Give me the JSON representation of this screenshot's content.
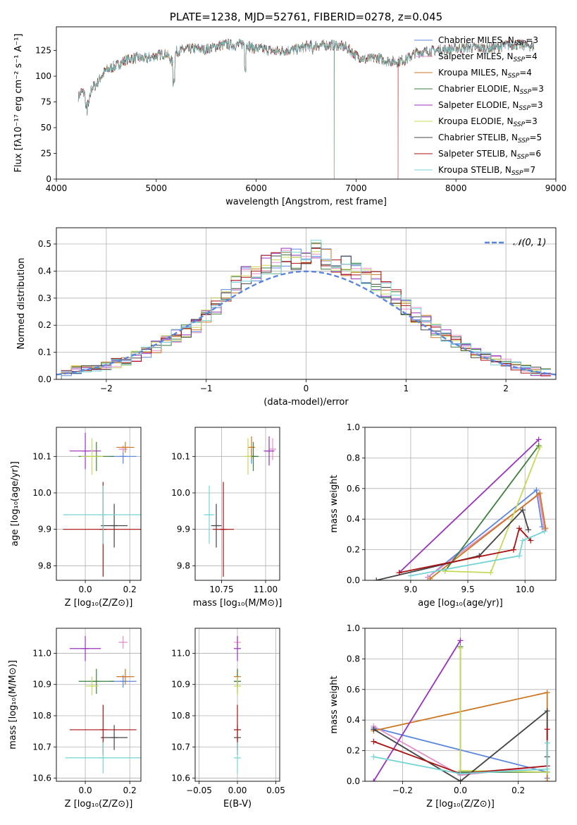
{
  "chart_data": [
    {
      "id": "spectrum",
      "type": "line",
      "title": "PLATE=1238, MJD=52761, FIBERID=0278, z=0.045",
      "xlabel": "wavelength [Angstrom, rest frame]",
      "ylabel": "Flux [fλ10⁻¹⁷ erg cm⁻² s⁻¹ A⁻¹]",
      "xlim": [
        4000,
        9000
      ],
      "ylim": [
        0,
        148
      ],
      "xticks": [
        "4000",
        "5000",
        "6000",
        "7000",
        "8000",
        "9000"
      ],
      "yticks": [
        "0",
        "25",
        "50",
        "75",
        "100",
        "125"
      ],
      "grid": false,
      "legend_position": "top-right",
      "continuum": {
        "x": [
          4220,
          4250,
          4300,
          4320,
          4350,
          4400,
          4450,
          4500,
          4600,
          4700,
          4800,
          4900,
          5000,
          5100,
          5170,
          5200,
          5300,
          5400,
          5500,
          5600,
          5700,
          5800,
          5880,
          5950,
          6000,
          6100,
          6200,
          6300,
          6400,
          6500,
          6600,
          6700,
          6800,
          6900,
          7000,
          7100,
          7200,
          7300,
          7400,
          7500,
          7600,
          7700,
          7800,
          7900,
          8000,
          8100,
          8200,
          8300,
          8400,
          8500,
          8600,
          8700,
          8780
        ],
        "y": [
          80,
          85,
          82,
          70,
          88,
          92,
          100,
          106,
          110,
          116,
          118,
          117,
          120,
          122,
          112,
          124,
          126,
          127,
          126,
          129,
          131,
          130,
          132,
          128,
          127,
          126,
          124,
          125,
          126,
          129,
          130,
          130,
          130,
          128,
          120,
          116,
          118,
          115,
          114,
          116,
          123,
          124,
          125,
          126,
          127,
          128,
          128,
          127,
          128,
          130,
          131,
          130,
          129
        ]
      },
      "dips": [
        {
          "x": 6780,
          "y": 0,
          "series": "Chabrier ELODIE"
        },
        {
          "x": 7420,
          "y": 0,
          "series": "Salpeter STELIB"
        }
      ],
      "series": [
        {
          "name": "Chabrier MILES, N",
          "sub": "SSP",
          "suffix": "=3",
          "color": "#5b86dd"
        },
        {
          "name": "Salpeter MILES, N",
          "sub": "SSP",
          "suffix": "=4",
          "color": "#e48fc5"
        },
        {
          "name": "Kroupa MILES, N",
          "sub": "SSP",
          "suffix": "=4",
          "color": "#cc7722"
        },
        {
          "name": "Chabrier ELODIE, N",
          "sub": "SSP",
          "suffix": "=3",
          "color": "#3f7d3f"
        },
        {
          "name": "Salpeter ELODIE, N",
          "sub": "SSP",
          "suffix": "=3",
          "color": "#9933bb"
        },
        {
          "name": "Kroupa ELODIE, N",
          "sub": "SSP",
          "suffix": "=3",
          "color": "#c8d85a"
        },
        {
          "name": "Chabrier STELIB, N",
          "sub": "SSP",
          "suffix": "=5",
          "color": "#444444"
        },
        {
          "name": "Salpeter STELIB, N",
          "sub": "SSP",
          "suffix": "=6",
          "color": "#aa1111"
        },
        {
          "name": "Kroupa STELIB, N",
          "sub": "SSP",
          "suffix": "=7",
          "color": "#77d4d4"
        }
      ]
    },
    {
      "id": "residuals",
      "type": "histogram",
      "xlabel": "(data-model)/error",
      "ylabel": "Normed distribution",
      "xlim": [
        -2.5,
        2.5
      ],
      "ylim": [
        0,
        0.56
      ],
      "xticks": [
        "−2",
        "−1",
        "0",
        "1",
        "2"
      ],
      "yticks": [
        "0.0",
        "0.1",
        "0.2",
        "0.3",
        "0.4",
        "0.5"
      ],
      "grid": true,
      "legend": [
        {
          "name": "𝒩(0, 1)",
          "style": "dashed",
          "color": "#5b86dd"
        }
      ],
      "legend_position": "top-right",
      "bin_centers": [
        -2.4,
        -2.3,
        -2.2,
        -2.1,
        -2.0,
        -1.9,
        -1.8,
        -1.7,
        -1.6,
        -1.5,
        -1.4,
        -1.3,
        -1.2,
        -1.1,
        -1.0,
        -0.9,
        -0.8,
        -0.7,
        -0.6,
        -0.5,
        -0.4,
        -0.3,
        -0.2,
        -0.1,
        0.0,
        0.1,
        0.2,
        0.3,
        0.4,
        0.5,
        0.6,
        0.7,
        0.8,
        0.9,
        1.0,
        1.1,
        1.2,
        1.3,
        1.4,
        1.5,
        1.6,
        1.7,
        1.8,
        1.9,
        2.0,
        2.1,
        2.2,
        2.3,
        2.4
      ],
      "envelope": [
        0.03,
        0.035,
        0.04,
        0.045,
        0.05,
        0.06,
        0.07,
        0.085,
        0.1,
        0.12,
        0.14,
        0.16,
        0.18,
        0.2,
        0.23,
        0.27,
        0.31,
        0.35,
        0.38,
        0.4,
        0.42,
        0.43,
        0.44,
        0.45,
        0.47,
        0.47,
        0.45,
        0.44,
        0.42,
        0.4,
        0.38,
        0.36,
        0.33,
        0.3,
        0.27,
        0.24,
        0.21,
        0.18,
        0.16,
        0.14,
        0.12,
        0.1,
        0.085,
        0.07,
        0.06,
        0.05,
        0.04,
        0.03,
        0.025
      ]
    },
    {
      "id": "age-vs-z",
      "type": "errorbar",
      "xlabel": "Z [log₁₀(Z/Z⊙)]",
      "ylabel": "age  [log₁₀(age/yr)]",
      "xlim": [
        -0.13,
        0.25
      ],
      "ylim": [
        9.76,
        10.18
      ],
      "xticks": [
        {
          "v": 0.0,
          "t": "0.0"
        },
        {
          "v": 0.2,
          "t": "0.2"
        }
      ],
      "yticks": [
        {
          "v": 9.8,
          "t": "9.8"
        },
        {
          "v": 9.9,
          "t": "9.9"
        },
        {
          "v": 10.0,
          "t": "10.0"
        },
        {
          "v": 10.1,
          "t": "10.1"
        }
      ],
      "grid": true,
      "points": [
        {
          "series": 0,
          "x": 0.17,
          "y": 10.1,
          "xerr": 0.06,
          "yerr": 0.02
        },
        {
          "series": 1,
          "x": 0.17,
          "y": 10.12,
          "xerr": 0.02,
          "yerr": 0.01
        },
        {
          "series": 2,
          "x": 0.18,
          "y": 10.125,
          "xerr": 0.04,
          "yerr": 0.015
        },
        {
          "series": 3,
          "x": 0.05,
          "y": 10.1,
          "xerr": 0.08,
          "yerr": 0.04
        },
        {
          "series": 4,
          "x": 0.0,
          "y": 10.115,
          "xerr": 0.07,
          "yerr": 0.05
        },
        {
          "series": 5,
          "x": 0.03,
          "y": 10.1,
          "xerr": 0.05,
          "yerr": 0.05
        },
        {
          "series": 6,
          "x": 0.13,
          "y": 9.91,
          "xerr": 0.06,
          "yerr": 0.06
        },
        {
          "series": 7,
          "x": 0.08,
          "y": 9.9,
          "xerr": 0.18,
          "yerr": 0.13
        },
        {
          "series": 8,
          "x": 0.08,
          "y": 9.94,
          "xerr": 0.18,
          "yerr": 0.08
        }
      ]
    },
    {
      "id": "age-vs-mass",
      "type": "errorbar",
      "xlabel": "mass [log₁₀(M/M⊙)]",
      "ylabel": "",
      "xlim": [
        10.6,
        11.08
      ],
      "ylim": [
        9.76,
        10.18
      ],
      "xticks": [
        {
          "v": 10.75,
          "t": "10.75"
        },
        {
          "v": 11.0,
          "t": "11.00"
        }
      ],
      "yticks": [
        {
          "v": 9.8,
          "t": "9.8"
        },
        {
          "v": 9.9,
          "t": "9.9"
        },
        {
          "v": 10.0,
          "t": "10.0"
        },
        {
          "v": 10.1,
          "t": "10.1"
        }
      ],
      "grid": true,
      "points": [
        {
          "series": 0,
          "x": 10.92,
          "y": 10.1,
          "xerr": 0.02,
          "yerr": 0.02
        },
        {
          "series": 1,
          "x": 11.04,
          "y": 10.12,
          "xerr": 0.02,
          "yerr": 0.03
        },
        {
          "series": 2,
          "x": 10.92,
          "y": 10.125,
          "xerr": 0.02,
          "yerr": 0.03
        },
        {
          "series": 3,
          "x": 10.93,
          "y": 10.1,
          "xerr": 0.03,
          "yerr": 0.04
        },
        {
          "series": 4,
          "x": 11.02,
          "y": 10.115,
          "xerr": 0.03,
          "yerr": 0.04
        },
        {
          "series": 5,
          "x": 10.9,
          "y": 10.1,
          "xerr": 0.02,
          "yerr": 0.05
        },
        {
          "series": 6,
          "x": 10.72,
          "y": 9.91,
          "xerr": 0.03,
          "yerr": 0.06
        },
        {
          "series": 7,
          "x": 10.76,
          "y": 9.9,
          "xerr": 0.06,
          "yerr": 0.13
        },
        {
          "series": 8,
          "x": 10.68,
          "y": 9.94,
          "xerr": 0.03,
          "yerr": 0.08
        }
      ]
    },
    {
      "id": "weight-vs-age",
      "type": "line",
      "xlabel": "age  [log₁₀(age/yr)]",
      "ylabel": "mass weight",
      "xlim": [
        8.6,
        10.27
      ],
      "ylim": [
        0,
        1.0
      ],
      "xticks": [
        {
          "v": 9.0,
          "t": "9.0"
        },
        {
          "v": 9.5,
          "t": "9.5"
        },
        {
          "v": 10.0,
          "t": "10.0"
        }
      ],
      "yticks": [
        {
          "v": 0.0,
          "t": "0.0"
        },
        {
          "v": 0.2,
          "t": "0.2"
        },
        {
          "v": 0.4,
          "t": "0.4"
        },
        {
          "v": 0.6,
          "t": "0.6"
        },
        {
          "v": 0.8,
          "t": "0.8"
        },
        {
          "v": 1.0,
          "t": "1.0"
        }
      ],
      "grid": true,
      "lines": [
        {
          "series": 0,
          "x": [
            9.15,
            10.1,
            10.15
          ],
          "y": [
            0.02,
            0.59,
            0.35
          ]
        },
        {
          "series": 1,
          "x": [
            9.15,
            10.12,
            10.17
          ],
          "y": [
            0.02,
            0.56,
            0.33
          ]
        },
        {
          "series": 2,
          "x": [
            9.17,
            10.13,
            10.18
          ],
          "y": [
            0.01,
            0.57,
            0.34
          ]
        },
        {
          "series": 3,
          "x": [
            9.3,
            10.12
          ],
          "y": [
            0.06,
            0.88
          ]
        },
        {
          "series": 4,
          "x": [
            8.9,
            10.12
          ],
          "y": [
            0.05,
            0.92
          ]
        },
        {
          "series": 5,
          "x": [
            9.3,
            9.7,
            10.13
          ],
          "y": [
            0.06,
            0.05,
            0.87
          ]
        },
        {
          "series": 6,
          "x": [
            8.7,
            9.6,
            9.98,
            10.03
          ],
          "y": [
            0.0,
            0.16,
            0.46,
            0.33
          ]
        },
        {
          "series": 7,
          "x": [
            8.9,
            9.9,
            9.95,
            10.05
          ],
          "y": [
            0.05,
            0.2,
            0.34,
            0.26
          ]
        },
        {
          "series": 8,
          "x": [
            9.0,
            9.95,
            9.98,
            10.17
          ],
          "y": [
            0.03,
            0.16,
            0.26,
            0.32
          ]
        }
      ]
    },
    {
      "id": "mass-vs-z",
      "type": "errorbar",
      "xlabel": "Z [log₁₀(Z/Z⊙)]",
      "ylabel": "mass [log₁₀(M/M⊙)]",
      "xlim": [
        -0.13,
        0.25
      ],
      "ylim": [
        10.59,
        11.08
      ],
      "xticks": [
        {
          "v": 0.0,
          "t": "0.0"
        },
        {
          "v": 0.2,
          "t": "0.2"
        }
      ],
      "yticks": [
        {
          "v": 10.6,
          "t": "10.6"
        },
        {
          "v": 10.7,
          "t": "10.7"
        },
        {
          "v": 10.8,
          "t": "10.8"
        },
        {
          "v": 10.9,
          "t": "10.9"
        },
        {
          "v": 11.0,
          "t": "11.0"
        }
      ],
      "grid": true,
      "points": [
        {
          "series": 0,
          "x": 0.17,
          "y": 10.91,
          "xerr": 0.06,
          "yerr": 0.02
        },
        {
          "series": 1,
          "x": 0.17,
          "y": 11.035,
          "xerr": 0.02,
          "yerr": 0.02
        },
        {
          "series": 2,
          "x": 0.18,
          "y": 10.925,
          "xerr": 0.04,
          "yerr": 0.025
        },
        {
          "series": 3,
          "x": 0.05,
          "y": 10.91,
          "xerr": 0.08,
          "yerr": 0.04
        },
        {
          "series": 4,
          "x": 0.0,
          "y": 11.015,
          "xerr": 0.07,
          "yerr": 0.04
        },
        {
          "series": 5,
          "x": 0.03,
          "y": 10.895,
          "xerr": 0.03,
          "yerr": 0.03
        },
        {
          "series": 6,
          "x": 0.13,
          "y": 10.73,
          "xerr": 0.06,
          "yerr": 0.04
        },
        {
          "series": 7,
          "x": 0.08,
          "y": 10.755,
          "xerr": 0.15,
          "yerr": 0.08
        },
        {
          "series": 8,
          "x": 0.08,
          "y": 10.665,
          "xerr": 0.17,
          "yerr": 0.05
        }
      ]
    },
    {
      "id": "mass-vs-ebv",
      "type": "errorbar",
      "xlabel": "E(B-V)",
      "ylabel": "",
      "xlim": [
        -0.055,
        0.055
      ],
      "ylim": [
        10.59,
        11.08
      ],
      "xticks": [
        {
          "v": -0.05,
          "t": "−0.05"
        },
        {
          "v": 0.0,
          "t": "0.00"
        },
        {
          "v": 0.05,
          "t": "0.05"
        }
      ],
      "yticks": [
        {
          "v": 10.6,
          "t": "10.6"
        },
        {
          "v": 10.7,
          "t": "10.7"
        },
        {
          "v": 10.8,
          "t": "10.8"
        },
        {
          "v": 10.9,
          "t": "10.9"
        },
        {
          "v": 11.0,
          "t": "11.0"
        }
      ],
      "grid": true,
      "points": [
        {
          "series": 0,
          "x": 0.0,
          "y": 10.91,
          "xerr": 0.0,
          "yerr": 0.02
        },
        {
          "series": 1,
          "x": 0.0,
          "y": 11.035,
          "xerr": 0.0,
          "yerr": 0.02
        },
        {
          "series": 2,
          "x": 0.0,
          "y": 10.925,
          "xerr": 0.0,
          "yerr": 0.025
        },
        {
          "series": 3,
          "x": 0.0,
          "y": 10.91,
          "xerr": 0.0,
          "yerr": 0.04
        },
        {
          "series": 4,
          "x": 0.0,
          "y": 11.015,
          "xerr": 0.0,
          "yerr": 0.04
        },
        {
          "series": 5,
          "x": 0.0,
          "y": 10.895,
          "xerr": 0.0,
          "yerr": 0.03
        },
        {
          "series": 6,
          "x": 0.0,
          "y": 10.73,
          "xerr": 0.0,
          "yerr": 0.04
        },
        {
          "series": 7,
          "x": 0.0,
          "y": 10.755,
          "xerr": 0.0,
          "yerr": 0.08
        },
        {
          "series": 8,
          "x": 0.0,
          "y": 10.665,
          "xerr": 0.0,
          "yerr": 0.05
        }
      ]
    },
    {
      "id": "weight-vs-z",
      "type": "line",
      "xlabel": "Z [log₁₀(Z/Z⊙)]",
      "ylabel": "mass weight",
      "xlim": [
        -0.33,
        0.33
      ],
      "ylim": [
        0,
        1.0
      ],
      "xticks": [
        {
          "v": -0.2,
          "t": "−0.2"
        },
        {
          "v": 0.0,
          "t": "0.0"
        },
        {
          "v": 0.2,
          "t": "0.2"
        }
      ],
      "yticks": [
        {
          "v": 0.0,
          "t": "0.0"
        },
        {
          "v": 0.2,
          "t": "0.2"
        },
        {
          "v": 0.4,
          "t": "0.4"
        },
        {
          "v": 0.6,
          "t": "0.6"
        },
        {
          "v": 0.8,
          "t": "0.8"
        },
        {
          "v": 1.0,
          "t": "1.0"
        }
      ],
      "grid": true,
      "lines": [
        {
          "series": 0,
          "x": [
            -0.3,
            0.3,
            0.3
          ],
          "y": [
            0.35,
            0.06,
            0.02
          ]
        },
        {
          "series": 1,
          "x": [
            -0.3,
            0.0,
            0.3
          ],
          "y": [
            0.36,
            0.04,
            0.1
          ]
        },
        {
          "series": 2,
          "x": [
            -0.3,
            0.3,
            0.3
          ],
          "y": [
            0.33,
            0.58,
            0.0
          ]
        },
        {
          "series": 3,
          "x": [
            0.0,
            0.0,
            0.3
          ],
          "y": [
            0.88,
            0.06,
            0.06
          ]
        },
        {
          "series": 4,
          "x": [
            -0.3,
            0.0
          ],
          "y": [
            0.0,
            0.92
          ]
        },
        {
          "series": 5,
          "x": [
            0.0,
            0.0,
            0.3
          ],
          "y": [
            0.87,
            0.07,
            0.06
          ]
        },
        {
          "series": 6,
          "x": [
            -0.3,
            0.0,
            0.3,
            0.3
          ],
          "y": [
            0.34,
            0.0,
            0.46,
            0.16
          ]
        },
        {
          "series": 7,
          "x": [
            -0.3,
            0.0,
            0.3,
            0.3
          ],
          "y": [
            0.26,
            0.05,
            0.1,
            0.34
          ]
        },
        {
          "series": 8,
          "x": [
            -0.3,
            0.0,
            0.3,
            0.3
          ],
          "y": [
            0.16,
            0.05,
            0.08,
            0.25
          ]
        }
      ]
    }
  ]
}
